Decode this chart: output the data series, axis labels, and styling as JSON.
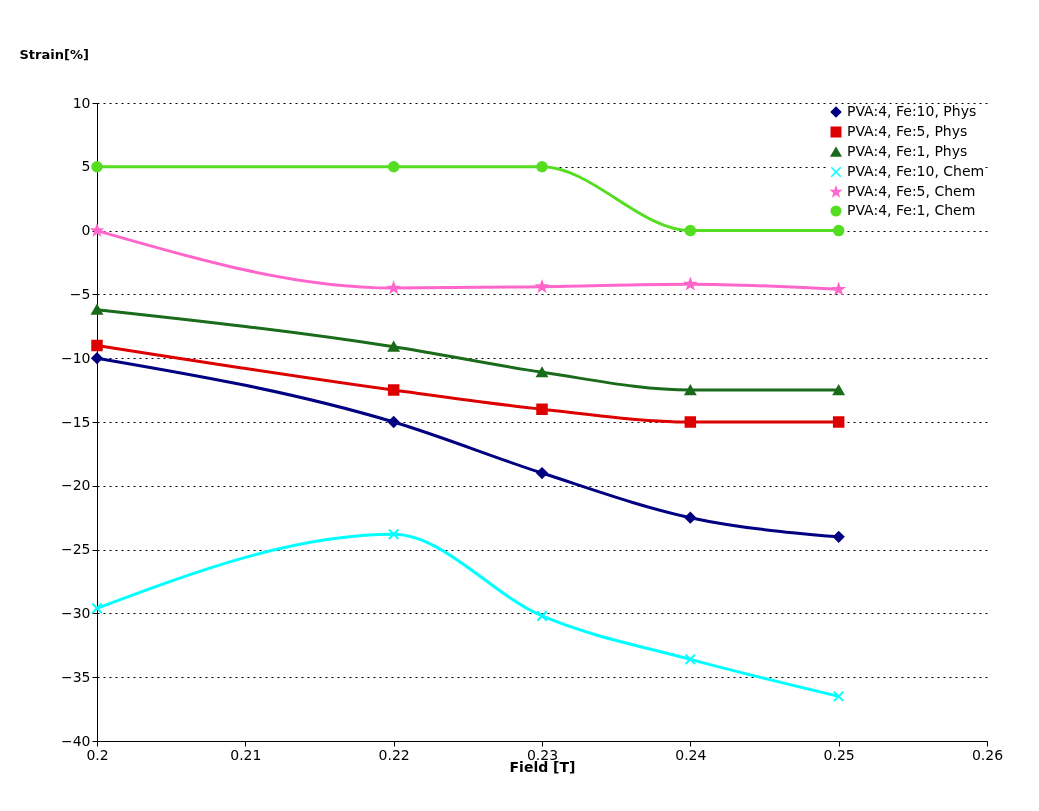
{
  "chart_data": {
    "type": "line",
    "xlabel": "Field [T]",
    "ylabel": "Strain[%]",
    "x": [
      0.2,
      0.22,
      0.23,
      0.24,
      0.25
    ],
    "xlim": [
      0.2,
      0.26
    ],
    "xticks": [
      0.2,
      0.21,
      0.22,
      0.23,
      0.24,
      0.25,
      0.26
    ],
    "ylim": [
      -40,
      10
    ],
    "yticks": [
      -40,
      -35,
      -30,
      -25,
      -20,
      -15,
      -10,
      -5,
      0,
      5,
      10
    ],
    "grid": "y",
    "legend": "top right",
    "series": [
      {
        "name": "PVA:4, Fe:10, Phys",
        "color": "#000080",
        "marker": "diamond",
        "values": [
          -10,
          -15,
          -19,
          -22.5,
          -24
        ]
      },
      {
        "name": "PVA:4, Fe:5, Phys",
        "color": "#dd0000",
        "marker": "square",
        "values": [
          -9,
          -12.5,
          -14,
          -15,
          -15
        ]
      },
      {
        "name": "PVA:4, Fe:1, Phys",
        "color": "#1a6b1a",
        "marker": "triangle",
        "values": [
          -6.2,
          -9.1,
          -11.1,
          -12.5,
          -12.5
        ]
      },
      {
        "name": "PVA:4, Fe:10, Chem",
        "color": "#00ffff",
        "marker": "cross",
        "values": [
          -29.6,
          -23.8,
          -30.2,
          -33.6,
          -36.5
        ]
      },
      {
        "name": "PVA:4, Fe:5, Chem",
        "color": "#ff66cc",
        "marker": "star",
        "values": [
          0,
          -4.5,
          -4.4,
          -4.2,
          -4.6
        ]
      },
      {
        "name": "PVA:4, Fe:1, Chem",
        "color": "#55dd22",
        "marker": "circle",
        "values": [
          5,
          5,
          5,
          0,
          0
        ]
      }
    ]
  }
}
